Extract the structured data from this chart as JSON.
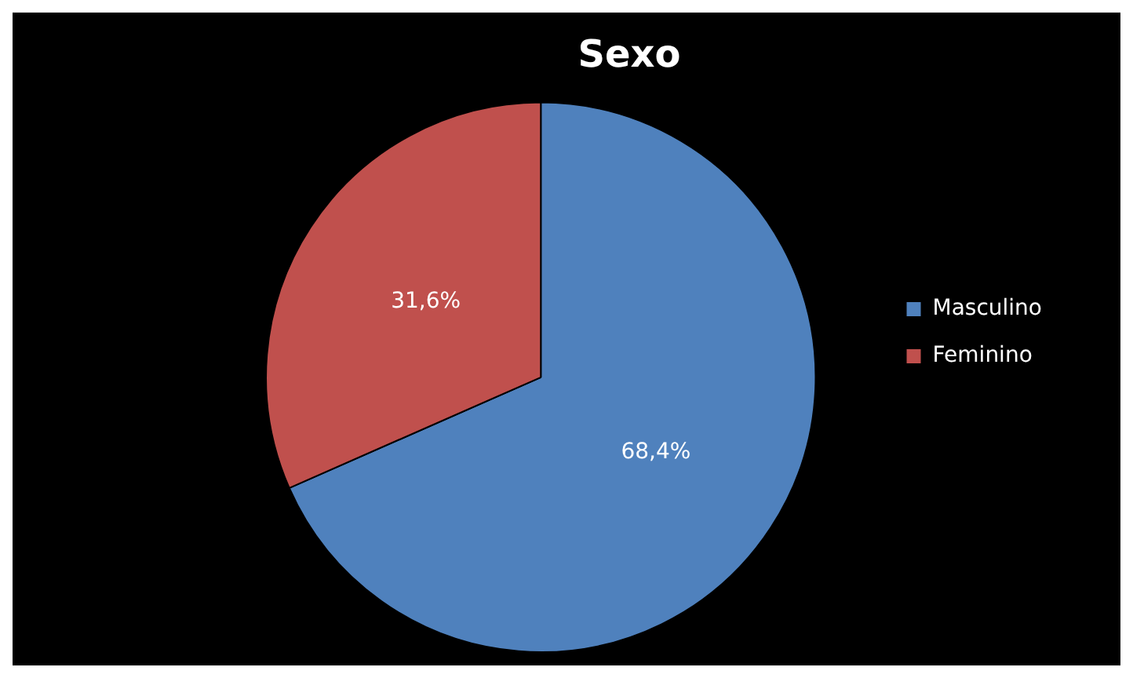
{
  "chart_data": {
    "type": "pie",
    "title": "Sexo",
    "categories": [
      "Masculino",
      "Feminino"
    ],
    "values": [
      68.4,
      31.6
    ],
    "colors": [
      "#4f81bd",
      "#c0504d"
    ],
    "value_labels": [
      "68,4%",
      "31,6%"
    ],
    "legend": "right"
  }
}
